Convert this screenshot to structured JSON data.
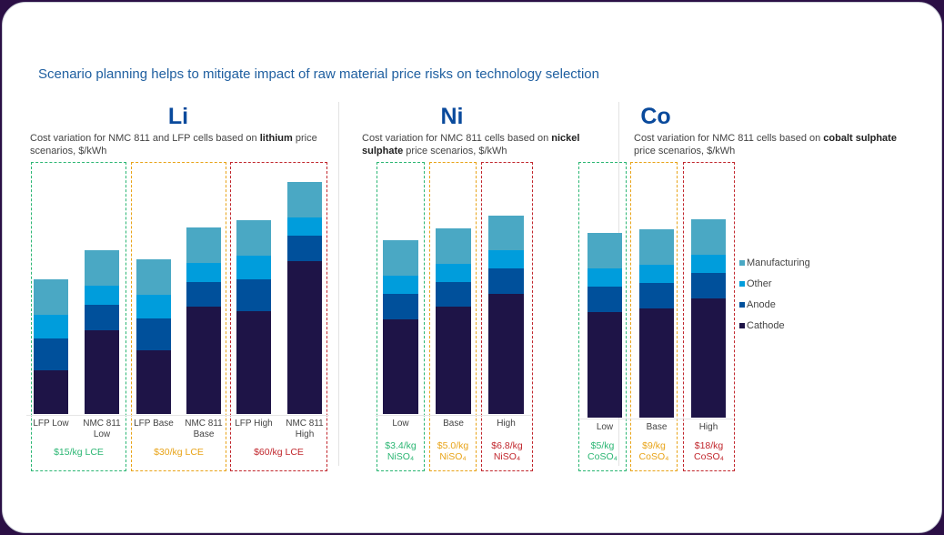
{
  "title": "Scenario planning helps to mitigate impact of raw material price risks on technology selection",
  "colors": {
    "Manufacturing": "#4aa8c4",
    "Other": "#009ddc",
    "Anode": "#00509b",
    "Cathode": "#1e1447",
    "low": "#2bb673",
    "base": "#e8a317",
    "high": "#c1272d",
    "heading": "#0a4a9c"
  },
  "chart_data": [
    {
      "type": "bar",
      "stacked": true,
      "heading": "Li",
      "subtitle_pre": "Cost variation for NMC 811 and LFP cells based on ",
      "subtitle_bold": "lithium",
      "subtitle_post": " price scenarios, $/kWh",
      "note": "relative values estimated from bar heights (no axis shown)",
      "categories": [
        "LFP Low",
        "NMC 811 Low",
        "LFP Base",
        "NMC 811 Base",
        "LFP High",
        "NMC 811 High"
      ],
      "series": [
        {
          "name": "Cathode",
          "values": [
            48,
            92,
            70,
            118,
            113,
            168
          ]
        },
        {
          "name": "Anode",
          "values": [
            35,
            28,
            35,
            27,
            35,
            28
          ]
        },
        {
          "name": "Other",
          "values": [
            26,
            21,
            26,
            21,
            26,
            20
          ]
        },
        {
          "name": "Manufacturing",
          "values": [
            39,
            39,
            39,
            39,
            39,
            39
          ]
        }
      ],
      "scenarios": [
        {
          "level": "low",
          "label": "$15/kg LCE"
        },
        {
          "level": "base",
          "label": "$30/kg LCE"
        },
        {
          "level": "high",
          "label": "$60/kg LCE"
        }
      ]
    },
    {
      "type": "bar",
      "stacked": true,
      "heading": "Ni",
      "subtitle_pre": "Cost variation for NMC 811 cells based on ",
      "subtitle_bold": "nickel sulphate",
      "subtitle_post": " price scenarios, $/kWh",
      "categories": [
        "Low",
        "Base",
        "High"
      ],
      "series": [
        {
          "name": "Cathode",
          "values": [
            104,
            118,
            132
          ]
        },
        {
          "name": "Anode",
          "values": [
            28,
            27,
            28
          ]
        },
        {
          "name": "Other",
          "values": [
            20,
            20,
            20
          ]
        },
        {
          "name": "Manufacturing",
          "values": [
            39,
            39,
            38
          ]
        }
      ],
      "scenarios": [
        {
          "level": "low",
          "label": "$3.4/kg",
          "sub": "NiSO₄"
        },
        {
          "level": "base",
          "label": "$5.0/kg",
          "sub": "NiSO₄"
        },
        {
          "level": "high",
          "label": "$6.8/kg",
          "sub": "NiSO₄"
        }
      ]
    },
    {
      "type": "bar",
      "stacked": true,
      "heading": "Co",
      "subtitle_pre": "Cost variation for NMC 811 cells based on ",
      "subtitle_bold": "cobalt sulphate",
      "subtitle_post": " price scenarios, $/kWh",
      "categories": [
        "Low",
        "Base",
        "High"
      ],
      "series": [
        {
          "name": "Cathode",
          "values": [
            116,
            120,
            131
          ]
        },
        {
          "name": "Anode",
          "values": [
            28,
            28,
            28
          ]
        },
        {
          "name": "Other",
          "values": [
            20,
            20,
            20
          ]
        },
        {
          "name": "Manufacturing",
          "values": [
            39,
            39,
            39
          ]
        }
      ],
      "scenarios": [
        {
          "level": "low",
          "label": "$5/kg",
          "sub": "CoSO₄"
        },
        {
          "level": "base",
          "label": "$9/kg",
          "sub": "CoSO₄"
        },
        {
          "level": "high",
          "label": "$18/kg",
          "sub": "CoSO₄"
        }
      ]
    }
  ],
  "legend": [
    "Manufacturing",
    "Other",
    "Anode",
    "Cathode"
  ]
}
